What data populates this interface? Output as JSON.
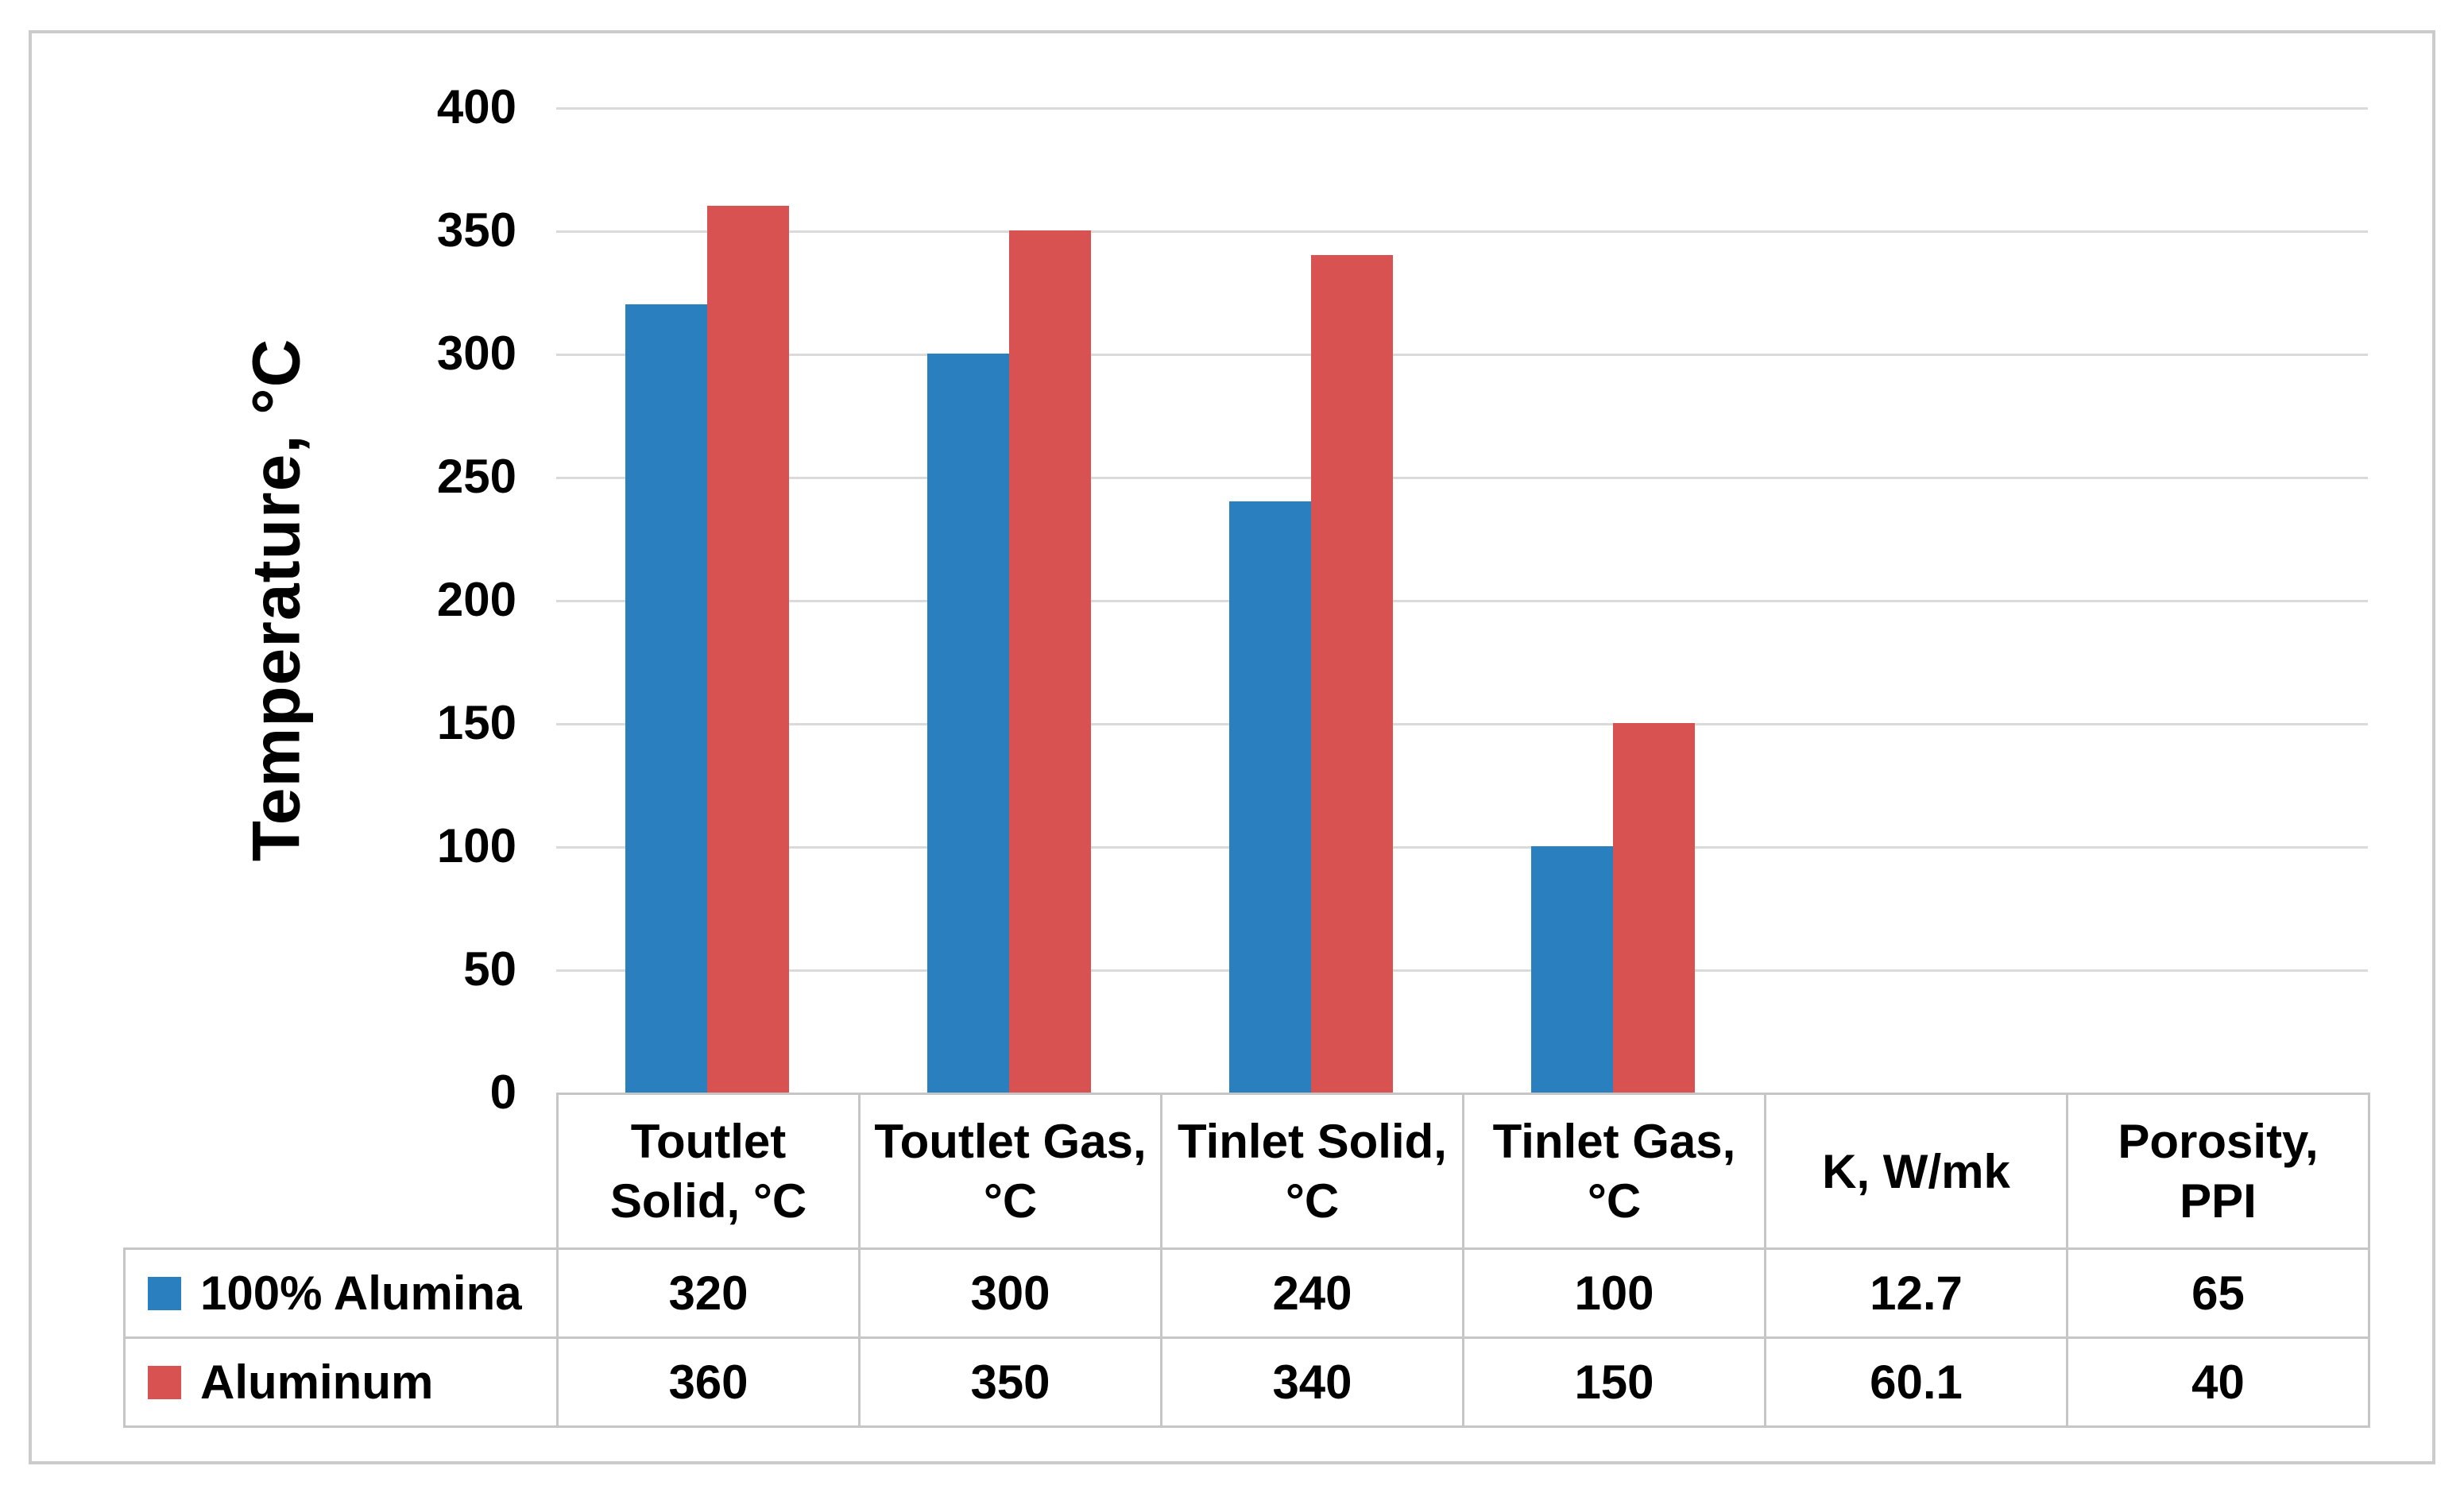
{
  "chart_data": {
    "type": "bar",
    "title": "",
    "xlabel": "",
    "ylabel": "Temperature, °C",
    "ylim": [
      0,
      400
    ],
    "ytick_step": 50,
    "ytick_labels": [
      "0",
      "50",
      "100",
      "150",
      "200",
      "250",
      "300",
      "350",
      "400"
    ],
    "grid": true,
    "legend_position": "data-table-row-labels",
    "categories": [
      "Toutlet Solid, °C",
      "Toutlet Gas, °C",
      "Tinlet Solid, °C",
      "Tinlet Gas, °C",
      "K, W/mk",
      "Porosity, PPI"
    ],
    "bars_plotted_categories": 4,
    "series": [
      {
        "name": "100% Alumina",
        "color": "#2a80bf",
        "values": [
          320,
          300,
          240,
          100,
          12.7,
          65
        ]
      },
      {
        "name": "Aluminum",
        "color": "#d85252",
        "values": [
          360,
          350,
          340,
          150,
          60.1,
          40
        ]
      }
    ]
  },
  "theme": {
    "series_blue": "#2a80bf",
    "series_red": "#d85252",
    "gridline_color": "#dadada",
    "table_border_color": "#c6c6c6",
    "figure_border_color": "#cbcbcb",
    "text_color": "#000000",
    "background": "#ffffff"
  }
}
